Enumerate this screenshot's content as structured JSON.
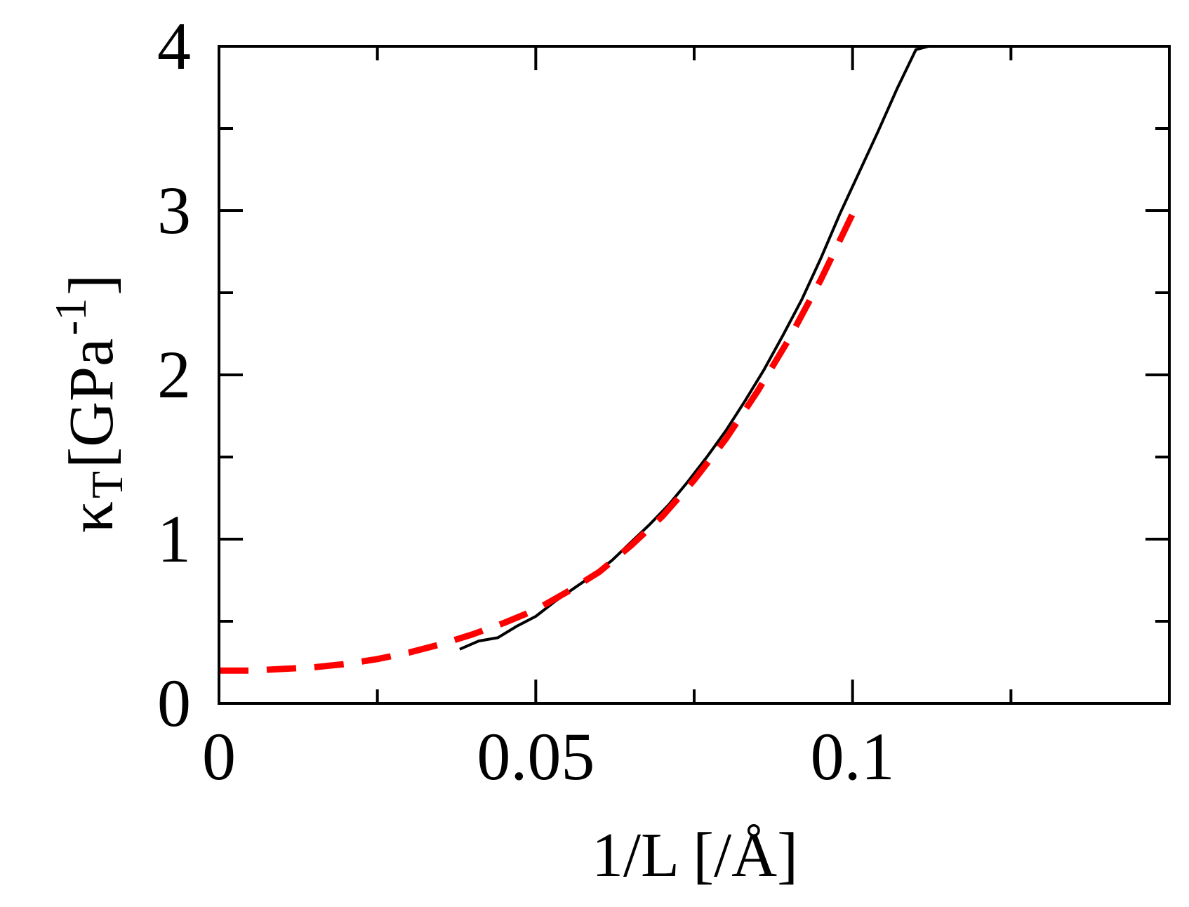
{
  "chart_data": {
    "type": "line",
    "xlabel": "1/L [/Å]",
    "ylabel": {
      "symbol": "κ",
      "subscript": "T",
      "unit_open": " [GPa",
      "superscript": "-1",
      "unit_close": "]"
    },
    "xlim": [
      0,
      0.15
    ],
    "ylim": [
      0,
      4
    ],
    "x_ticks_major": [
      0,
      0.05,
      0.1
    ],
    "x_tick_labels": [
      "0",
      "0.05",
      "0.1"
    ],
    "x_ticks_minor": [
      0.025,
      0.075,
      0.125
    ],
    "y_ticks_major": [
      0,
      1,
      2,
      3,
      4
    ],
    "y_tick_labels": [
      "0",
      "1",
      "2",
      "3",
      "4"
    ],
    "y_ticks_minor": [
      0.5,
      1.5,
      2.5,
      3.5
    ],
    "grid": false,
    "legend": "none",
    "series": [
      {
        "style": "solid",
        "color": "#000000",
        "x": [
          0.038,
          0.041,
          0.044,
          0.047,
          0.05,
          0.053,
          0.056,
          0.059,
          0.062,
          0.065,
          0.068,
          0.071,
          0.074,
          0.077,
          0.08,
          0.083,
          0.086,
          0.089,
          0.092,
          0.095,
          0.098,
          0.101,
          0.104,
          0.107,
          0.11,
          0.112
        ],
        "y": [
          0.33,
          0.38,
          0.4,
          0.47,
          0.53,
          0.62,
          0.7,
          0.78,
          0.87,
          0.98,
          1.09,
          1.21,
          1.35,
          1.5,
          1.66,
          1.84,
          2.03,
          2.24,
          2.46,
          2.71,
          2.98,
          3.23,
          3.48,
          3.74,
          3.98,
          4.0
        ]
      },
      {
        "style": "dashed",
        "color": "#ff0000",
        "x": [
          0,
          0.005,
          0.01,
          0.015,
          0.02,
          0.025,
          0.03,
          0.035,
          0.04,
          0.045,
          0.05,
          0.055,
          0.06,
          0.065,
          0.07,
          0.075,
          0.08,
          0.085,
          0.09,
          0.095,
          0.1
        ],
        "y": [
          0.2,
          0.2,
          0.21,
          0.22,
          0.24,
          0.27,
          0.31,
          0.36,
          0.42,
          0.49,
          0.57,
          0.68,
          0.8,
          0.96,
          1.14,
          1.36,
          1.61,
          1.9,
          2.22,
          2.58,
          2.98
        ]
      }
    ]
  }
}
